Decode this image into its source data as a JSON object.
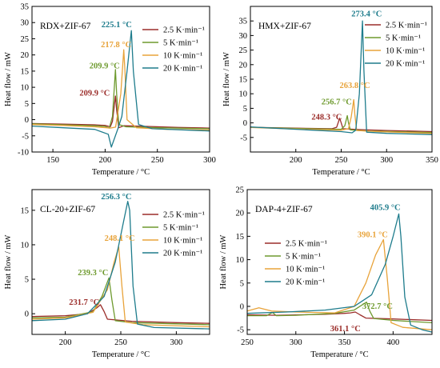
{
  "colors": {
    "2.5": "#9B2D2A",
    "5": "#6E9A2E",
    "10": "#E8A33A",
    "20": "#1E7C8C",
    "axis": "#000000"
  },
  "chart_data": [
    {
      "type": "line",
      "panel_label": "RDX+ZIF-67",
      "xlabel": "Temperature / °C",
      "ylabel": "Heat flow / mW",
      "xlim": [
        130,
        300
      ],
      "ylim": [
        -10,
        35
      ],
      "xticks": [
        150,
        200,
        250,
        300
      ],
      "yticks": [
        -10,
        -5,
        0,
        5,
        10,
        15,
        20,
        25,
        30,
        35
      ],
      "legend": "top-right",
      "series": [
        {
          "name": "2.5 K·min⁻¹",
          "rate": "2.5",
          "x": [
            130,
            160,
            190,
            200,
            205,
            207,
            209.9,
            211,
            213,
            218,
            240,
            270,
            300
          ],
          "y": [
            -1.2,
            -1.4,
            -1.6,
            -1.8,
            -2.2,
            -0.5,
            7.3,
            3,
            -2.5,
            -1.9,
            -2.1,
            -2.4,
            -2.6
          ]
        },
        {
          "name": "5 K·min⁻¹",
          "rate": "5",
          "x": [
            130,
            160,
            190,
            200,
            204,
            207,
            209.9,
            211,
            213,
            220,
            250,
            300
          ],
          "y": [
            -1.3,
            -1.6,
            -1.9,
            -2.1,
            -2.6,
            1,
            15.5,
            8,
            -1.5,
            -2.2,
            -2.5,
            -2.8
          ]
        },
        {
          "name": "10 K·min⁻¹",
          "rate": "10",
          "x": [
            130,
            160,
            190,
            205,
            210,
            215,
            217.8,
            219,
            221,
            230,
            260,
            300
          ],
          "y": [
            -1.5,
            -1.8,
            -2.2,
            -2.6,
            -2.3,
            8,
            21.6,
            15,
            0,
            -2.5,
            -3,
            -3.2
          ]
        },
        {
          "name": "20 K·min⁻¹",
          "rate": "20",
          "x": [
            130,
            160,
            190,
            203,
            206,
            212,
            216,
            221,
            225.1,
            227,
            232,
            245,
            300
          ],
          "y": [
            -2,
            -2.5,
            -3,
            -4.5,
            -8.5,
            -3,
            1,
            15,
            27.5,
            15,
            -1.5,
            -2.8,
            -3.5
          ]
        }
      ],
      "annotations": [
        {
          "text": "225.1 °C",
          "rate": "20",
          "x": 211,
          "y": 28.6,
          "anchor": "middle"
        },
        {
          "text": "217.8 °C",
          "rate": "10",
          "x": 210.5,
          "y": 22.4,
          "anchor": "middle"
        },
        {
          "text": "209.9 °C",
          "rate": "5",
          "x": 199.5,
          "y": 15.8,
          "anchor": "middle"
        },
        {
          "text": "209.9 °C",
          "rate": "2.5",
          "x": 190,
          "y": 7.4,
          "anchor": "middle"
        }
      ]
    },
    {
      "type": "line",
      "panel_label": "HMX+ZIF-67",
      "xlabel": "Temperature / °C",
      "ylabel": "Heat flow / mW",
      "xlim": [
        150,
        350
      ],
      "ylim": [
        -10,
        40
      ],
      "xticks": [
        200,
        250,
        300,
        350
      ],
      "yticks": [
        -5,
        0,
        5,
        10,
        15,
        20,
        25,
        30,
        35
      ],
      "legend": "top-right",
      "series": [
        {
          "name": "2.5 K·min⁻¹",
          "rate": "2.5",
          "x": [
            150,
            200,
            240,
            245,
            248.3,
            250,
            252,
            270,
            300,
            350
          ],
          "y": [
            -1.5,
            -1.8,
            -2,
            -1.5,
            1.6,
            0,
            -2,
            -2.3,
            -2.6,
            -3
          ]
        },
        {
          "name": "5 K·min⁻¹",
          "rate": "5",
          "x": [
            150,
            200,
            250,
            254,
            256.7,
            258,
            260,
            280,
            350
          ],
          "y": [
            -1.5,
            -1.9,
            -2.2,
            -1,
            2.5,
            0,
            -2.4,
            -2.8,
            -3.3
          ]
        },
        {
          "name": "10 K·min⁻¹",
          "rate": "10",
          "x": [
            150,
            200,
            250,
            258,
            261,
            263.8,
            265,
            267,
            290,
            350
          ],
          "y": [
            -1.6,
            -2.1,
            -2.5,
            -2,
            2,
            8,
            3,
            -2.6,
            -3,
            -3.6
          ]
        },
        {
          "name": "20 K·min⁻¹",
          "rate": "20",
          "x": [
            150,
            200,
            250,
            262,
            266,
            270,
            273.4,
            275,
            278,
            300,
            350
          ],
          "y": [
            -1.4,
            -2.2,
            -3,
            -3.4,
            -2.5,
            10,
            35,
            18,
            -3.2,
            -3.6,
            -4
          ]
        }
      ],
      "annotations": [
        {
          "text": "273.4 °C",
          "rate": "20",
          "x": 278,
          "y": 36.5,
          "anchor": "middle"
        },
        {
          "text": "263.8 °C",
          "rate": "10",
          "x": 265,
          "y": 12,
          "anchor": "middle"
        },
        {
          "text": "256.7 °C",
          "rate": "5",
          "x": 245,
          "y": 6.3,
          "anchor": "middle"
        },
        {
          "text": "248.3 °C",
          "rate": "2.5",
          "x": 234,
          "y": 1.1,
          "anchor": "middle"
        }
      ]
    },
    {
      "type": "line",
      "panel_label": "CL-20+ZIF-67",
      "xlabel": "Temperature / °C",
      "ylabel": "Heat flow / mW",
      "xlim": [
        170,
        330
      ],
      "ylim": [
        -3,
        18
      ],
      "xticks": [
        200,
        250,
        300
      ],
      "yticks": [
        0,
        5,
        10,
        15
      ],
      "legend": "top-right",
      "series": [
        {
          "name": "2.5 K·min⁻¹",
          "rate": "2.5",
          "x": [
            170,
            200,
            220,
            228,
            231.7,
            235,
            238,
            260,
            300,
            330
          ],
          "y": [
            -0.4,
            -0.3,
            0,
            0.8,
            1.3,
            0.3,
            -0.8,
            -1.1,
            -1.3,
            -1.4
          ]
        },
        {
          "name": "5 K·min⁻¹",
          "rate": "5",
          "x": [
            170,
            200,
            225,
            233,
            239.3,
            242,
            245,
            260,
            330
          ],
          "y": [
            -0.6,
            -0.5,
            0.3,
            2.5,
            5.2,
            2,
            -1,
            -1.3,
            -1.6
          ]
        },
        {
          "name": "10 K·min⁻¹",
          "rate": "10",
          "x": [
            170,
            200,
            225,
            238,
            244,
            248.1,
            251,
            254,
            270,
            330
          ],
          "y": [
            -0.8,
            -0.6,
            0.2,
            3.5,
            7.5,
            9.7,
            4,
            -1.2,
            -1.6,
            -1.9
          ]
        },
        {
          "name": "20 K·min⁻¹",
          "rate": "20",
          "x": [
            170,
            200,
            220,
            235,
            245,
            252,
            256.3,
            258,
            261,
            265,
            280,
            330
          ],
          "y": [
            -1,
            -0.8,
            0,
            2.5,
            7.5,
            13,
            16.3,
            15,
            4,
            -1.5,
            -2,
            -2.2
          ]
        }
      ],
      "annotations": [
        {
          "text": "256.3 °C",
          "rate": "20",
          "x": 246,
          "y": 16.6,
          "anchor": "middle"
        },
        {
          "text": "248.1 °C",
          "rate": "10",
          "x": 249,
          "y": 10.6,
          "anchor": "middle"
        },
        {
          "text": "239.3 °C",
          "rate": "5",
          "x": 225,
          "y": 5.6,
          "anchor": "middle"
        },
        {
          "text": "231.7 °C",
          "rate": "2.5",
          "x": 217,
          "y": 1.3,
          "anchor": "middle"
        }
      ]
    },
    {
      "type": "line",
      "panel_label": "DAP-4+ZIF-67",
      "xlabel": "Temperature / °C",
      "ylabel": "Heat flow / mW",
      "xlim": [
        250,
        440
      ],
      "ylim": [
        -6,
        25
      ],
      "xticks": [
        250,
        300,
        350,
        400
      ],
      "yticks": [
        -5,
        0,
        5,
        10,
        15,
        20,
        25
      ],
      "legend": "middle-left",
      "series": [
        {
          "name": "2.5 K·min⁻¹",
          "rate": "2.5",
          "x": [
            250,
            280,
            330,
            350,
            356,
            361.1,
            366,
            372,
            400,
            440
          ],
          "y": [
            -1.8,
            -1.9,
            -1.7,
            -1.5,
            -1.4,
            -1.2,
            -1.8,
            -2.5,
            -2.7,
            -3
          ]
        },
        {
          "name": "5 K·min⁻¹",
          "rate": "5",
          "x": [
            250,
            270,
            276,
            280,
            300,
            340,
            360,
            368,
            372.7,
            376,
            380,
            400,
            440
          ],
          "y": [
            -2,
            -2,
            -1.3,
            -2,
            -1.9,
            -1.5,
            -0.8,
            0.3,
            0.9,
            -1,
            -2.6,
            -3,
            -3.5
          ]
        },
        {
          "name": "10 K·min⁻¹",
          "rate": "10",
          "x": [
            250,
            262,
            275,
            300,
            340,
            360,
            372,
            382,
            390.1,
            394,
            398,
            410,
            440
          ],
          "y": [
            -1,
            -0.3,
            -1,
            -1.2,
            -1.4,
            0,
            5,
            11,
            14.3,
            6,
            -3.5,
            -4.5,
            -5
          ]
        },
        {
          "name": "20 K·min⁻¹",
          "rate": "20",
          "x": [
            250,
            290,
            330,
            360,
            378,
            392,
            400,
            405.9,
            408,
            412,
            418,
            430,
            440
          ],
          "y": [
            -1.5,
            -1.2,
            -0.8,
            0,
            2.5,
            9,
            15,
            19.8,
            15,
            2,
            -4,
            -5,
            -5.5
          ]
        }
      ],
      "annotations": [
        {
          "text": "405.9 °C",
          "rate": "20",
          "x": 392,
          "y": 20.6,
          "anchor": "middle"
        },
        {
          "text": "390.1 °C",
          "rate": "10",
          "x": 379,
          "y": 14.8,
          "anchor": "middle"
        },
        {
          "text": "372.7 °C",
          "rate": "5",
          "x": 384,
          "y": -0.5,
          "anchor": "middle"
        },
        {
          "text": "361.1 °C",
          "rate": "2.5",
          "x": 351,
          "y": -5.3,
          "anchor": "middle"
        }
      ]
    }
  ]
}
